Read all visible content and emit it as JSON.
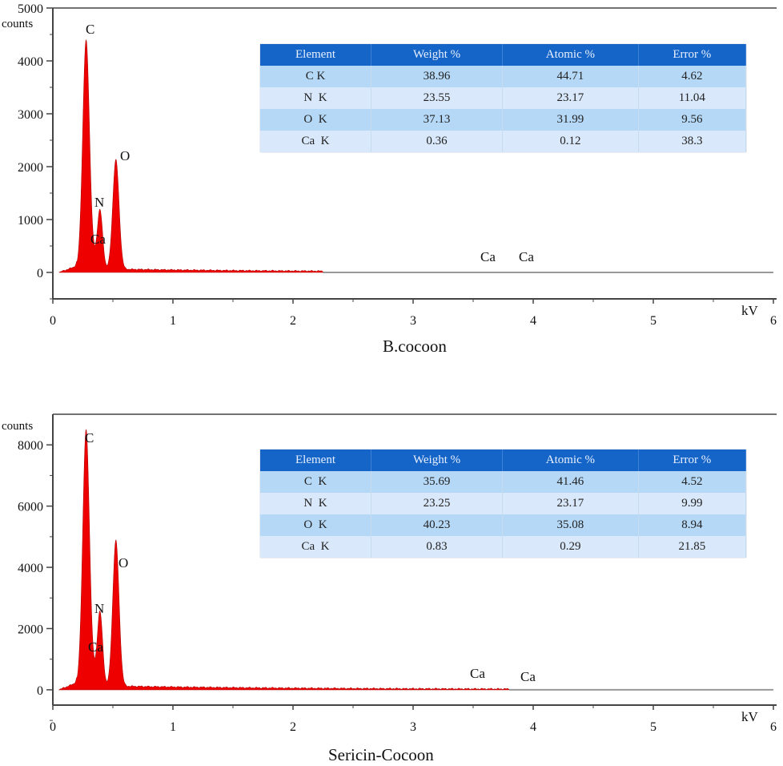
{
  "chart_data": [
    {
      "type": "area",
      "title": "B.cocoon",
      "xlabel": "kV",
      "ylabel": "counts",
      "xlim": [
        0,
        6
      ],
      "ylim": [
        -500,
        5000
      ],
      "xticks": [
        0,
        1,
        2,
        3,
        4,
        5,
        6
      ],
      "yticks": [
        0,
        1000,
        2000,
        3000,
        4000,
        5000
      ],
      "peaks": [
        {
          "label": "C",
          "x": 0.277,
          "y": 4450
        },
        {
          "label": "N",
          "x": 0.392,
          "y": 1150
        },
        {
          "label": "O",
          "x": 0.525,
          "y": 2130
        },
        {
          "label": "Ca",
          "x": 0.341,
          "y": 400
        },
        {
          "label": "Ca",
          "x": 3.69,
          "y": 20
        },
        {
          "label": "Ca",
          "x": 4.01,
          "y": 10
        }
      ],
      "red_fill_until_kv": 2.25,
      "table": {
        "headers": [
          "Element",
          "Weight %",
          "Atomic %",
          "Error %"
        ],
        "rows": [
          [
            "C K",
            "38.96",
            "44.71",
            "4.62"
          ],
          [
            "N  K",
            "23.55",
            "23.17",
            "11.04"
          ],
          [
            "O  K",
            "37.13",
            "31.99",
            "9.56"
          ],
          [
            "Ca  K",
            "0.36",
            "0.12",
            "38.3"
          ]
        ]
      }
    },
    {
      "type": "area",
      "title": "Sericin-Cocoon",
      "xlabel": "kV",
      "ylabel": "counts",
      "xlim": [
        0,
        6
      ],
      "ylim": [
        -500,
        9000
      ],
      "xticks": [
        0,
        1,
        2,
        3,
        4,
        5,
        6
      ],
      "yticks": [
        0,
        2000,
        4000,
        6000,
        8000
      ],
      "peaks": [
        {
          "label": "C",
          "x": 0.277,
          "y": 8600
        },
        {
          "label": "N",
          "x": 0.392,
          "y": 2500
        },
        {
          "label": "O",
          "x": 0.525,
          "y": 4900
        },
        {
          "label": "Ca",
          "x": 0.341,
          "y": 800
        },
        {
          "label": "Ca",
          "x": 3.69,
          "y": 40
        },
        {
          "label": "Ca",
          "x": 4.01,
          "y": 20
        }
      ],
      "red_fill_until_kv": 3.8,
      "table": {
        "headers": [
          "Element",
          "Weight %",
          "Atomic %",
          "Error %"
        ],
        "rows": [
          [
            "C  K",
            "35.69",
            "41.46",
            "4.52"
          ],
          [
            "N  K",
            "23.25",
            "23.17",
            "9.99"
          ],
          [
            "O  K",
            "40.23",
            "35.08",
            "8.94"
          ],
          [
            "Ca  K",
            "0.83",
            "0.29",
            "21.85"
          ]
        ]
      }
    }
  ],
  "colors": {
    "fill": "#ee0000",
    "header": "#1565c8"
  }
}
